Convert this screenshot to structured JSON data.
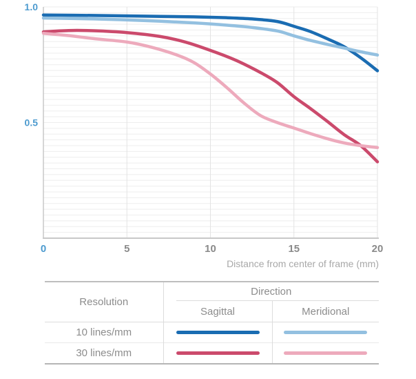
{
  "chart_data": {
    "type": "line",
    "xlabel": "Distance from center of frame (mm)",
    "x_domain": [
      0,
      20
    ],
    "y_domain": [
      0,
      1
    ],
    "x_ticks": [
      {
        "label": "0",
        "value": 0,
        "accent": true
      },
      {
        "label": "5",
        "value": 5,
        "accent": false
      },
      {
        "label": "10",
        "value": 10,
        "accent": false
      },
      {
        "label": "15",
        "value": 15,
        "accent": false
      },
      {
        "label": "20",
        "value": 20,
        "accent": false
      }
    ],
    "y_ticks": [
      {
        "label": "1.0",
        "value": 1.0
      },
      {
        "label": "0.5",
        "value": 0.5
      }
    ],
    "minor_grid_step_y": 0.025,
    "grid_on": true,
    "legend_position": "bottom-table",
    "colors": {
      "grid_h": "#eeeeee",
      "grid_v": "#e3e3e3",
      "axis": "#c8c8c8",
      "accent_tick_label": "#4d9bcf",
      "tick_label": "#8a8a8a",
      "axis_title": "#a8a8a8"
    },
    "series": [
      {
        "name": "10 lines/mm Sagittal",
        "resolution": "10 lines/mm",
        "direction": "Sagittal",
        "color": "#1a6cb2",
        "points": [
          [
            0,
            0.965
          ],
          [
            3,
            0.963
          ],
          [
            6,
            0.96
          ],
          [
            9,
            0.957
          ],
          [
            11,
            0.953
          ],
          [
            12.5,
            0.948
          ],
          [
            14,
            0.937
          ],
          [
            15,
            0.916
          ],
          [
            16,
            0.893
          ],
          [
            17,
            0.862
          ],
          [
            18,
            0.828
          ],
          [
            19,
            0.78
          ],
          [
            20,
            0.724
          ]
        ]
      },
      {
        "name": "10 lines/mm Meridional",
        "resolution": "10 lines/mm",
        "direction": "Meridional",
        "color": "#93c0e0",
        "points": [
          [
            0,
            0.952
          ],
          [
            3,
            0.948
          ],
          [
            6,
            0.941
          ],
          [
            9,
            0.931
          ],
          [
            11,
            0.921
          ],
          [
            12.5,
            0.911
          ],
          [
            14,
            0.896
          ],
          [
            15,
            0.875
          ],
          [
            16,
            0.855
          ],
          [
            17,
            0.838
          ],
          [
            18,
            0.822
          ],
          [
            19,
            0.806
          ],
          [
            20,
            0.792
          ]
        ]
      },
      {
        "name": "30 lines/mm Sagittal",
        "resolution": "30 lines/mm",
        "direction": "Sagittal",
        "color": "#cb4a6c",
        "points": [
          [
            0,
            0.892
          ],
          [
            1.5,
            0.898
          ],
          [
            3,
            0.897
          ],
          [
            5,
            0.889
          ],
          [
            7,
            0.872
          ],
          [
            8.5,
            0.848
          ],
          [
            10,
            0.812
          ],
          [
            11.5,
            0.77
          ],
          [
            13,
            0.716
          ],
          [
            14,
            0.673
          ],
          [
            15,
            0.612
          ],
          [
            16,
            0.56
          ],
          [
            17,
            0.505
          ],
          [
            18,
            0.448
          ],
          [
            19,
            0.4
          ],
          [
            20,
            0.33
          ]
        ]
      },
      {
        "name": "30 lines/mm Meridional",
        "resolution": "30 lines/mm",
        "direction": "Meridional",
        "color": "#edaabc",
        "points": [
          [
            0,
            0.886
          ],
          [
            1.5,
            0.876
          ],
          [
            3,
            0.863
          ],
          [
            5,
            0.848
          ],
          [
            6.5,
            0.825
          ],
          [
            8,
            0.792
          ],
          [
            9,
            0.76
          ],
          [
            10,
            0.71
          ],
          [
            11,
            0.65
          ],
          [
            12,
            0.585
          ],
          [
            13,
            0.53
          ],
          [
            14,
            0.5
          ],
          [
            15,
            0.476
          ],
          [
            16,
            0.452
          ],
          [
            17,
            0.43
          ],
          [
            18,
            0.412
          ],
          [
            19,
            0.4
          ],
          [
            20,
            0.392
          ]
        ]
      }
    ]
  },
  "legend": {
    "resolution_header": "Resolution",
    "direction_header": "Direction",
    "columns": [
      "Sagittal",
      "Meridional"
    ],
    "rows": [
      {
        "label": "10 lines/mm",
        "sagittal_color": "#1a6cb2",
        "meridional_color": "#93c0e0"
      },
      {
        "label": "30 lines/mm",
        "sagittal_color": "#cb4a6c",
        "meridional_color": "#edaabc"
      }
    ]
  }
}
